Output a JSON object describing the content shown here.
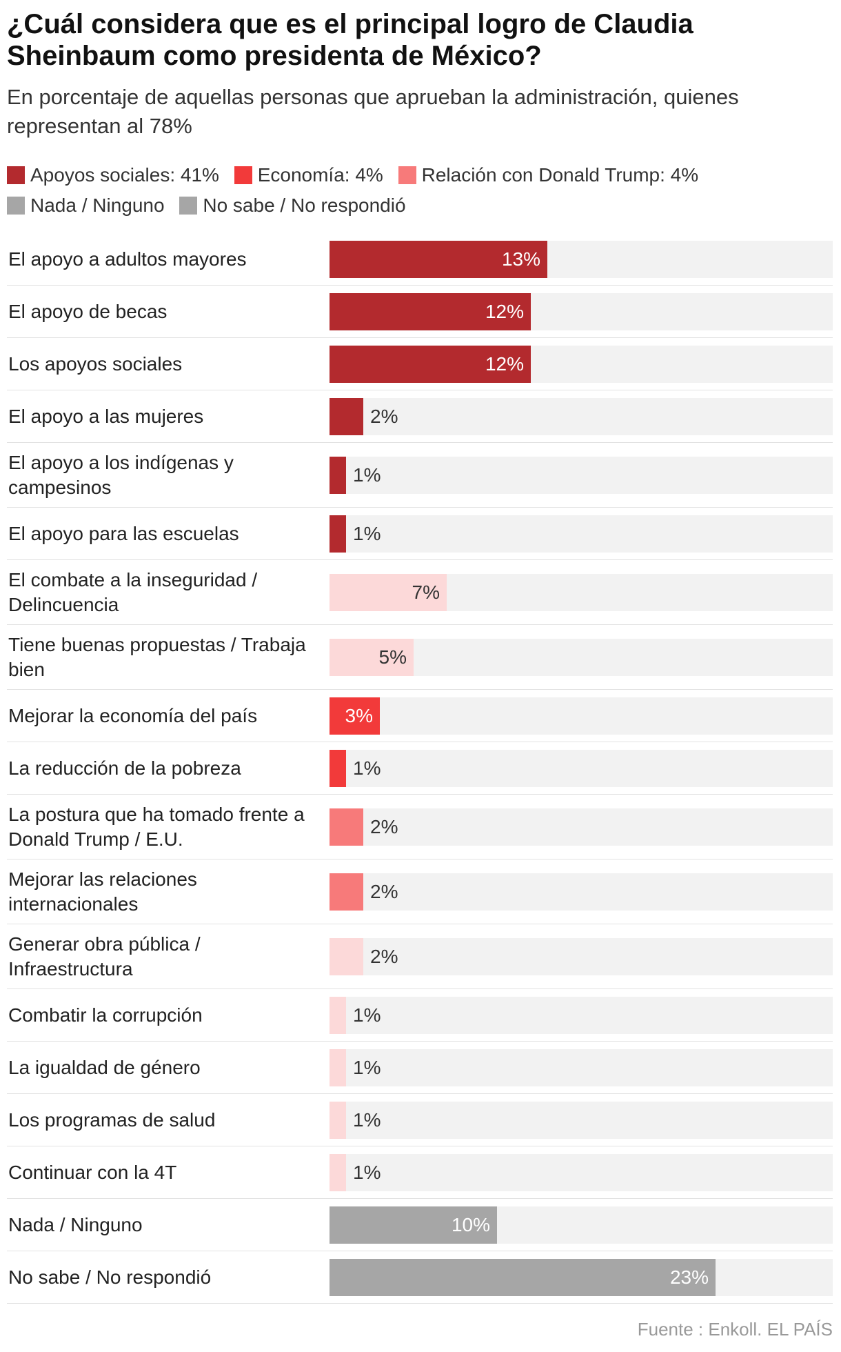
{
  "title": "¿Cuál considera que es el principal logro de Claudia Sheinbaum como presidenta de México?",
  "subtitle": "En porcentaje de aquellas personas que aprueban la administración, quienes representan al 78%",
  "legend": [
    {
      "label": "Apoyos sociales: 41%",
      "color": "#b32a2e"
    },
    {
      "label": "Economía: 4%",
      "color": "#f23a3a"
    },
    {
      "label": "Relación con Donald Trump: 4%",
      "color": "#f77a7a"
    },
    {
      "label": "Nada / Ninguno",
      "color": "#a6a6a6"
    },
    {
      "label": "No sabe / No respondió",
      "color": "#a6a6a6"
    }
  ],
  "source": "Fuente : Enkoll. EL PAÍS",
  "chart_data": {
    "type": "bar",
    "orientation": "horizontal",
    "xlim": [
      0,
      30
    ],
    "categories": [
      "El apoyo a adultos mayores",
      "El apoyo de becas",
      "Los apoyos sociales",
      "El apoyo a las mujeres",
      "El apoyo a los indígenas y campesinos",
      "El apoyo para las escuelas",
      "El combate a la inseguridad / Delincuencia",
      "Tiene buenas propuestas / Trabaja bien",
      "Mejorar la economía del país",
      "La reducción de la pobreza",
      "La postura que ha tomado frente a Donald Trump / E.U.",
      "Mejorar las relaciones internacionales",
      "Generar obra pública / Infraestructura",
      "Combatir la corrupción",
      "La igualdad de género",
      "Los programas de salud",
      "Continuar con la 4T",
      "Nada / Ninguno",
      "No sabe / No respondió"
    ],
    "values": [
      13,
      12,
      12,
      2,
      1,
      1,
      7,
      5,
      3,
      1,
      2,
      2,
      2,
      1,
      1,
      1,
      1,
      10,
      23
    ],
    "value_labels": [
      "13%",
      "12%",
      "12%",
      "2%",
      "1%",
      "1%",
      "7%",
      "5%",
      "3%",
      "1%",
      "2%",
      "2%",
      "2%",
      "1%",
      "1%",
      "1%",
      "1%",
      "10%",
      "23%"
    ],
    "colors": [
      "#b32a2e",
      "#b32a2e",
      "#b32a2e",
      "#b32a2e",
      "#b32a2e",
      "#b32a2e",
      "#fcd9d9",
      "#fcd9d9",
      "#f23a3a",
      "#f23a3a",
      "#f77a7a",
      "#f77a7a",
      "#fcd9d9",
      "#fcd9d9",
      "#fcd9d9",
      "#fcd9d9",
      "#fcd9d9",
      "#a6a6a6",
      "#a6a6a6"
    ],
    "legend_position": "top"
  }
}
